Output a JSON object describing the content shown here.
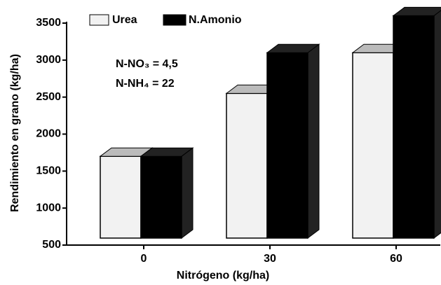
{
  "chart_data": {
    "type": "bar3d",
    "y_label": "Rendimiento en grano (kg/ha)",
    "x_label": "Nitrógeno (kg/ha)",
    "annotations": [
      "N-NO₃ = 4,5",
      "N-NH₄ = 22"
    ],
    "categories": [
      "0",
      "30",
      "60"
    ],
    "series": [
      {
        "name": "Urea",
        "color": "#f2f2f2",
        "values": [
          1700,
          2550,
          3100
        ]
      },
      {
        "name": "N.Amonio",
        "color": "#000000",
        "values": [
          1700,
          3100,
          3600
        ]
      }
    ],
    "ylim": [
      500,
      3500
    ],
    "yticks": [
      500,
      1000,
      1500,
      2000,
      2500,
      3000,
      3500
    ],
    "legend": "top"
  }
}
